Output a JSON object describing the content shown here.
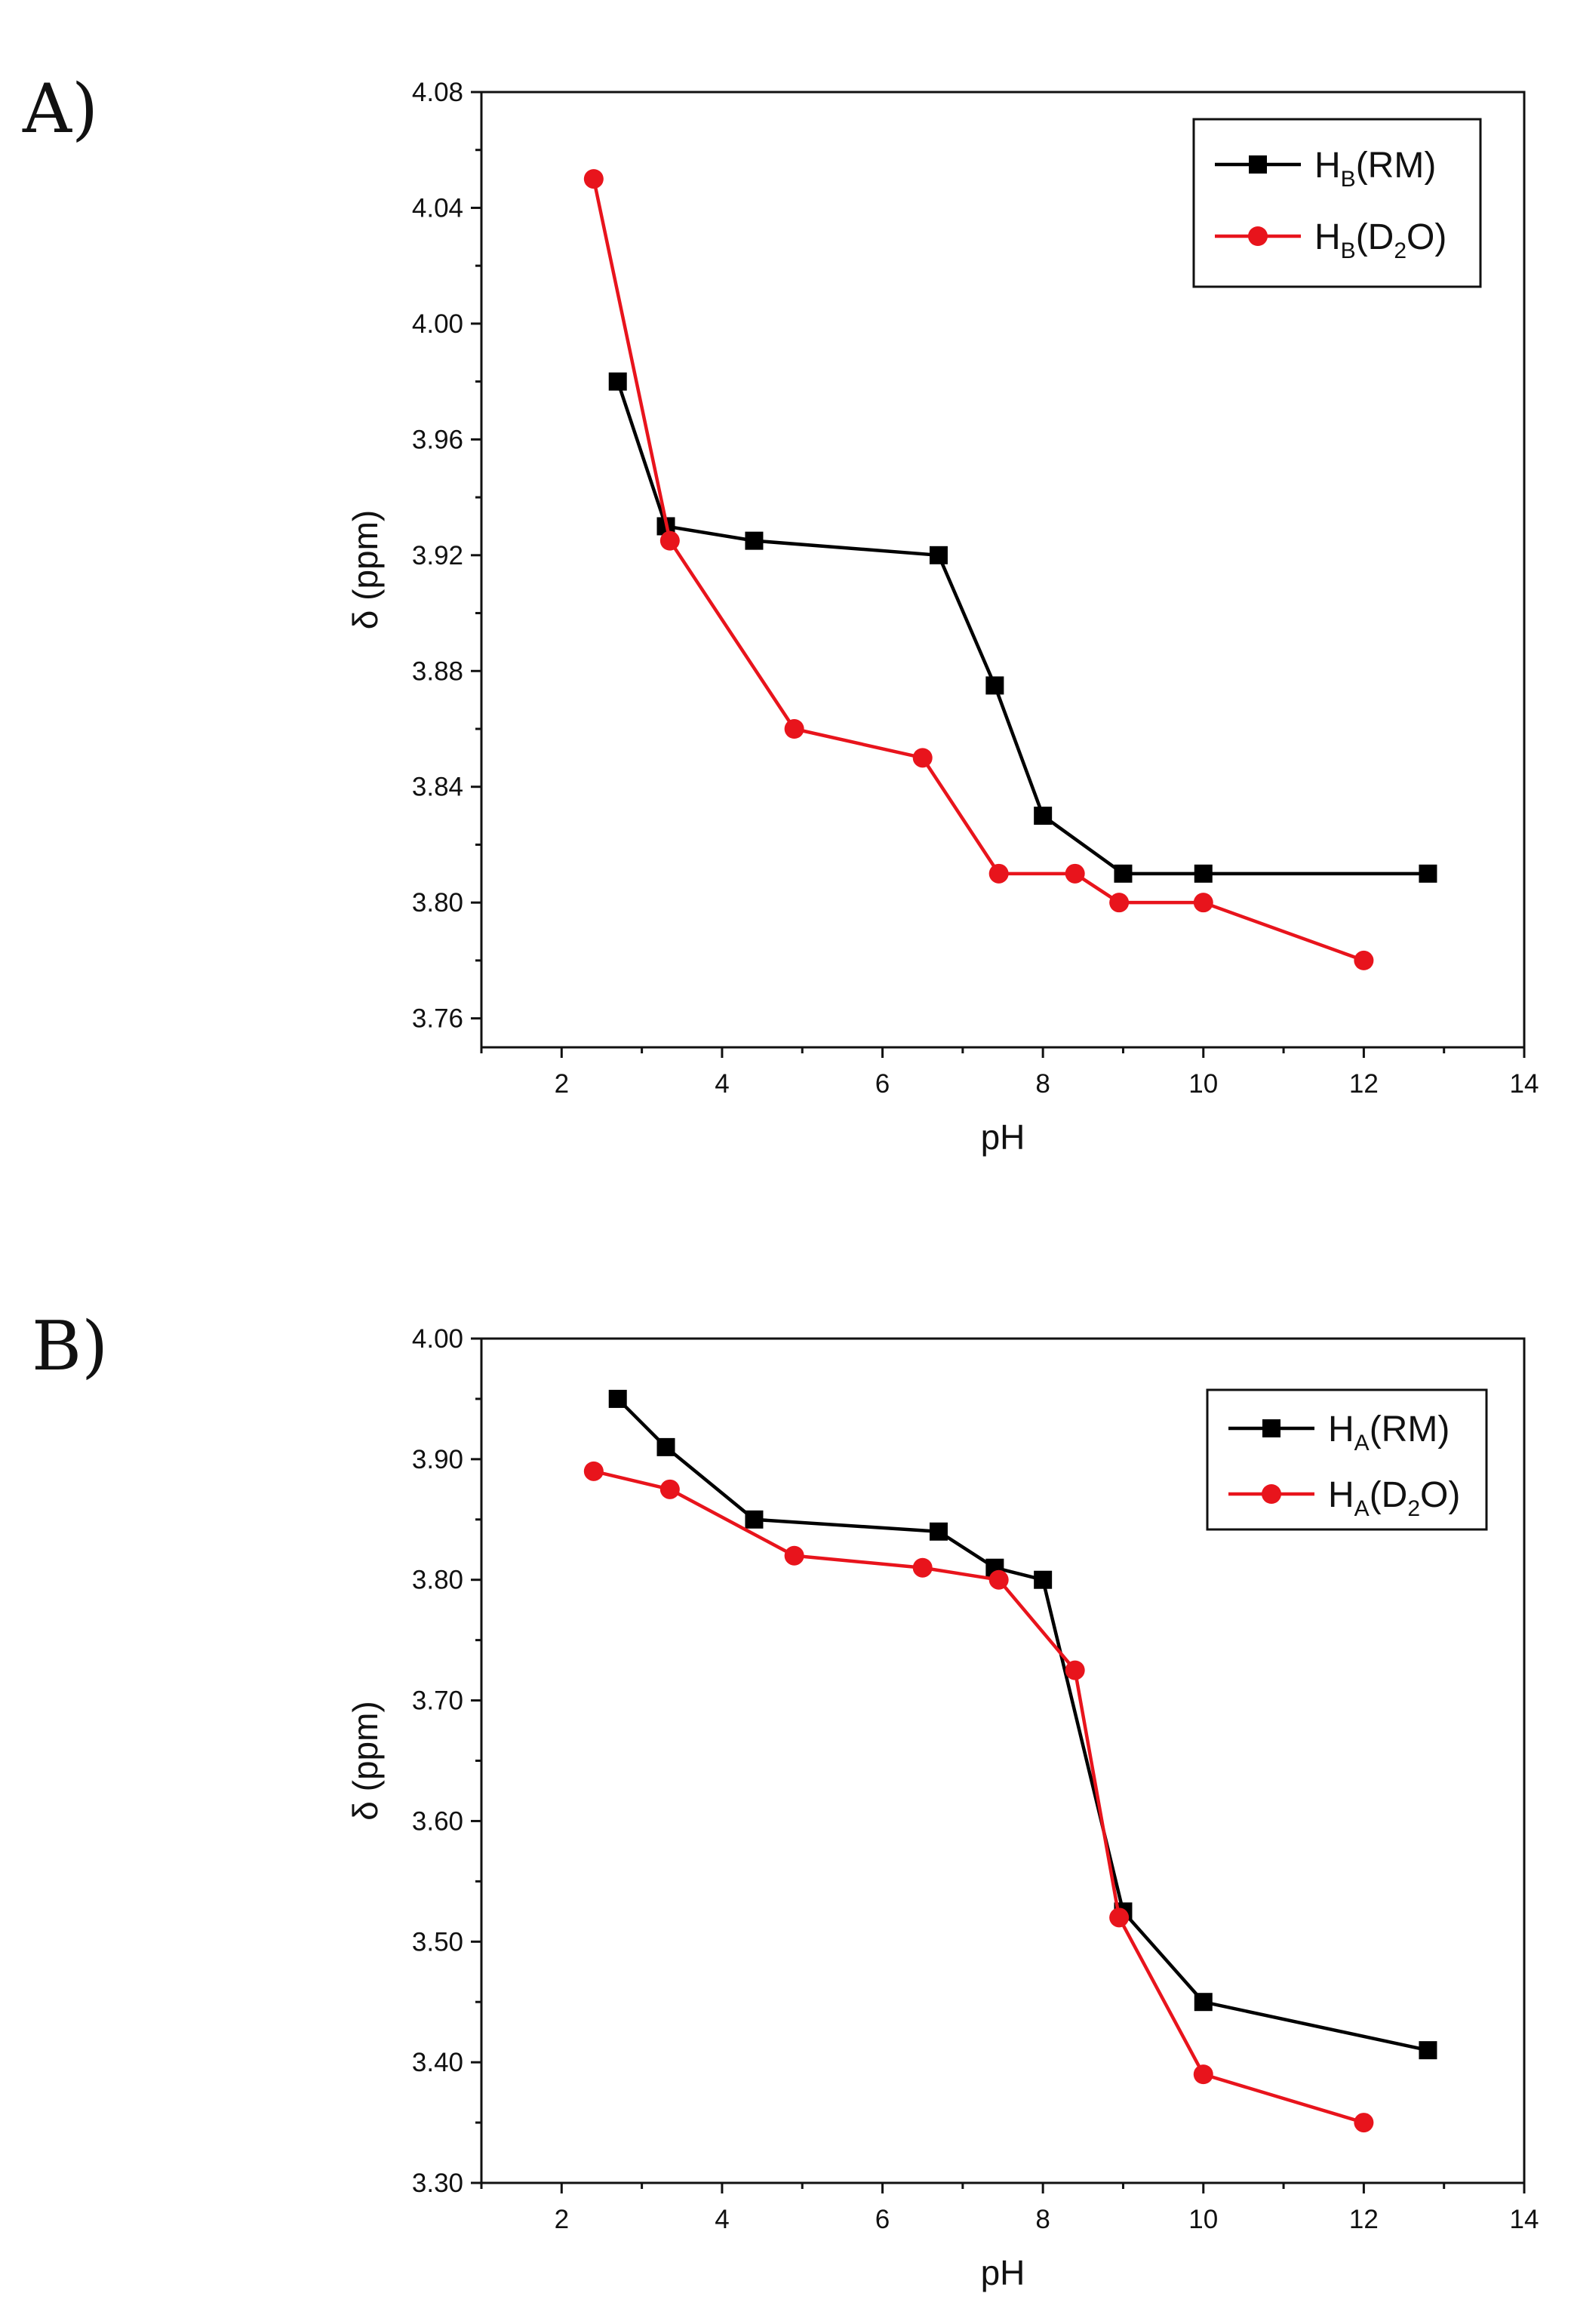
{
  "panels": {
    "a": {
      "label": "A)"
    },
    "b": {
      "label": "B)"
    }
  },
  "chart_data": [
    {
      "id": "a",
      "type": "line",
      "xlabel": "pH",
      "ylabel": "δ (ppm)",
      "xlim": [
        1,
        14
      ],
      "ylim": [
        3.75,
        4.08
      ],
      "xticks": [
        2,
        4,
        6,
        8,
        10,
        12,
        14
      ],
      "yticks": [
        3.76,
        3.8,
        3.84,
        3.88,
        3.92,
        3.96,
        4.0,
        4.04,
        4.08
      ],
      "ytick_decimals": 2,
      "legend_position": "top-right",
      "series": [
        {
          "name": "HB(RM)",
          "legend": {
            "main": "H",
            "sub": "B",
            "rest": "(RM)"
          },
          "marker": "square",
          "color": "#000000",
          "x": [
            2.7,
            3.3,
            4.4,
            6.7,
            7.4,
            8.0,
            9.0,
            10.0,
            12.8
          ],
          "y": [
            3.98,
            3.93,
            3.925,
            3.92,
            3.875,
            3.83,
            3.81,
            3.81,
            3.81
          ]
        },
        {
          "name": "HB(D2O)",
          "legend": {
            "main": "H",
            "sub": "B",
            "rest": "(D",
            "sub2": "2",
            "rest2": "O)"
          },
          "marker": "circle",
          "color": "#e8141c",
          "x": [
            2.4,
            3.35,
            4.9,
            6.5,
            7.45,
            8.4,
            8.95,
            10.0,
            12.0
          ],
          "y": [
            4.05,
            3.925,
            3.86,
            3.85,
            3.81,
            3.81,
            3.8,
            3.8,
            3.78
          ]
        }
      ]
    },
    {
      "id": "b",
      "type": "line",
      "xlabel": "pH",
      "ylabel": "δ (ppm)",
      "xlim": [
        1,
        14
      ],
      "ylim": [
        3.3,
        4.0
      ],
      "xticks": [
        2,
        4,
        6,
        8,
        10,
        12,
        14
      ],
      "yticks": [
        3.3,
        3.4,
        3.5,
        3.6,
        3.7,
        3.8,
        3.9,
        4.0
      ],
      "ytick_decimals": 2,
      "legend_position": "top-right",
      "series": [
        {
          "name": "HA(RM)",
          "legend": {
            "main": "H",
            "sub": "A",
            "rest": "(RM)"
          },
          "marker": "square",
          "color": "#000000",
          "x": [
            2.7,
            3.3,
            4.4,
            6.7,
            7.4,
            8.0,
            9.0,
            10.0,
            12.8
          ],
          "y": [
            3.95,
            3.91,
            3.85,
            3.84,
            3.81,
            3.8,
            3.525,
            3.45,
            3.41
          ]
        },
        {
          "name": "HA(D2O)",
          "legend": {
            "main": "H",
            "sub": "A",
            "rest": "(D",
            "sub2": "2",
            "rest2": "O)"
          },
          "marker": "circle",
          "color": "#e8141c",
          "x": [
            2.4,
            3.35,
            4.9,
            6.5,
            7.45,
            8.4,
            8.95,
            10.0,
            12.0
          ],
          "y": [
            3.89,
            3.875,
            3.82,
            3.81,
            3.8,
            3.725,
            3.52,
            3.39,
            3.35
          ]
        }
      ]
    }
  ]
}
